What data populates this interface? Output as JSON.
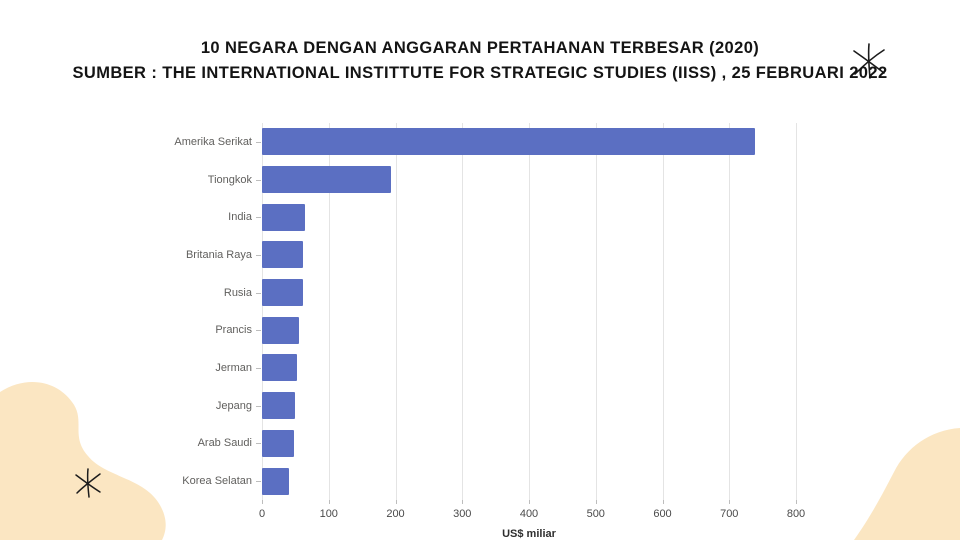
{
  "title": {
    "line1": "10 NEGARA DENGAN ANGGARAN PERTAHANAN TERBESAR (2020)",
    "line2": "SUMBER : THE INTERNATIONAL INSTITTUTE FOR STRATEGIC STUDIES (IISS) , 25 FEBRUARI 2022"
  },
  "chart_data": {
    "type": "bar",
    "orientation": "horizontal",
    "title": "10 NEGARA DENGAN ANGGARAN PERTAHANAN TERBESAR (2020)",
    "categories": [
      "Amerika Serikat",
      "Tiongkok",
      "India",
      "Britania Raya",
      "Rusia",
      "Prancis",
      "Jerman",
      "Jepang",
      "Arab Saudi",
      "Korea Selatan"
    ],
    "values": [
      738,
      193,
      64,
      62,
      61,
      55,
      52,
      50,
      48,
      40
    ],
    "xlabel": "US$ miliar",
    "ylabel": "",
    "xlim": [
      0,
      800
    ],
    "xticks": [
      0,
      100,
      200,
      300,
      400,
      500,
      600,
      700,
      800
    ],
    "grid": true,
    "legend": "none",
    "bar_color": "#5b6fc2"
  },
  "decor": {
    "blob_color": "#fbe6c2",
    "asterisk_color": "#1c1c1c"
  }
}
